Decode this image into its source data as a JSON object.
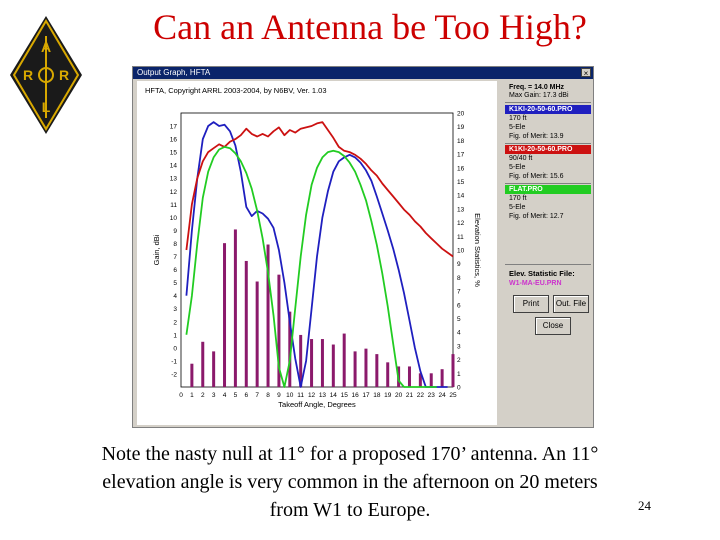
{
  "slide": {
    "title": "Can an Antenna be Too High?",
    "caption": "Note the nasty null at 11° for a proposed 170’ antenna. An 11° elevation angle is very common in the afternoon on 20 meters from W1 to Europe.",
    "page_number": "24",
    "logo_letters": [
      "A",
      "R",
      "R",
      "L"
    ]
  },
  "window": {
    "title": "Output Graph, HFTA",
    "close_glyph": "×"
  },
  "side_panel": {
    "freq": "Freq. = 14.0 MHz",
    "max_gain": "Max Gain: 17.3 dBi",
    "series": [
      {
        "file": "K1KI-20-50-60.PRO",
        "height": "170 ft",
        "elements": "5-Ele",
        "merit": "Fig. of Merit: 13.9",
        "color": "#1f1fbf"
      },
      {
        "file": "K1KI-20-50-60.PRO",
        "height": "90/40 ft",
        "elements": "5-Ele",
        "merit": "Fig. of Merit: 15.6",
        "color": "#cc1111"
      },
      {
        "file": "FLAT.PRO",
        "height": "170 ft",
        "elements": "5-Ele",
        "merit": "Fig. of Merit: 12.7",
        "color": "#22cc22"
      }
    ],
    "elev_label": "Elev. Statistic File:",
    "elev_file": "W1-MA-EU.PRN",
    "elev_file_color": "#cc33cc",
    "buttons": {
      "print": "Print",
      "out_file": "Out. File",
      "close": "Close"
    }
  },
  "chart_data": {
    "type": "line",
    "title": "HFTA, Copyright ARRL 2003-2004, by N6BV, Ver. 1.03",
    "xlabel": "Takeoff Angle, Degrees",
    "ylabel": "Gain, dBi",
    "y2label": "Elevation Statistics, %",
    "xlim": [
      0,
      25
    ],
    "ylim": [
      -3,
      18
    ],
    "y2lim": [
      0,
      20
    ],
    "x_ticks": [
      0,
      1,
      2,
      3,
      4,
      5,
      6,
      7,
      8,
      9,
      10,
      11,
      12,
      13,
      14,
      15,
      16,
      17,
      18,
      19,
      20,
      21,
      22,
      23,
      24,
      25
    ],
    "y_ticks": [
      -2,
      -1,
      0,
      1,
      2,
      3,
      4,
      5,
      6,
      7,
      8,
      9,
      10,
      11,
      12,
      13,
      14,
      15,
      16,
      17
    ],
    "y2_ticks": [
      0,
      1,
      2,
      3,
      4,
      5,
      6,
      7,
      8,
      9,
      10,
      11,
      12,
      13,
      14,
      15,
      16,
      17,
      18,
      19,
      20
    ],
    "series": [
      {
        "color": "#1f1fbf",
        "x": [
          0.5,
          1,
          1.5,
          2,
          2.5,
          3,
          3.5,
          4,
          4.5,
          5,
          5.5,
          6,
          6.5,
          7,
          7.5,
          8,
          8.5,
          9,
          9.5,
          10,
          10.5,
          11,
          11.5,
          12,
          12.5,
          13,
          13.5,
          14,
          14.5,
          15,
          15.5,
          16,
          16.5,
          17,
          17.5,
          18,
          18.5,
          19,
          19.5,
          20,
          20.5,
          21,
          21.5,
          22,
          22.5,
          23,
          23.5,
          24,
          24.5
        ],
        "y": [
          4,
          9,
          13,
          16,
          17,
          17.3,
          17,
          17.1,
          16.6,
          15.5,
          13.5,
          10.8,
          10.1,
          10.5,
          10.3,
          9.9,
          9.2,
          7.5,
          5,
          2,
          -0.8,
          -3,
          -1,
          3,
          7,
          10,
          12,
          13.5,
          14.3,
          14.6,
          14.8,
          14.6,
          14.2,
          13.6,
          12.8,
          11.6,
          10.3,
          9,
          7.6,
          6,
          4.2,
          2.1,
          0,
          -1.8,
          -3,
          -3,
          -3,
          -3,
          -3
        ]
      },
      {
        "color": "#cc1111",
        "x": [
          0.5,
          1,
          1.5,
          2,
          2.5,
          3,
          3.5,
          4,
          4.5,
          5,
          5.5,
          6,
          6.5,
          7,
          7.5,
          8,
          8.5,
          9,
          9.5,
          10,
          10.5,
          11,
          11.5,
          12,
          12.5,
          13,
          13.5,
          14,
          14.5,
          15,
          15.5,
          16,
          16.5,
          17,
          17.5,
          18,
          18.5,
          19,
          19.5,
          20,
          20.5,
          21,
          21.5,
          22,
          22.5,
          23,
          23.5,
          24,
          24.5,
          25
        ],
        "y": [
          7.5,
          11,
          13,
          14.3,
          15,
          15.3,
          15.6,
          15.4,
          15.8,
          16,
          16.3,
          16.8,
          16.4,
          16.2,
          16.4,
          16.2,
          16.6,
          16.9,
          16.3,
          16.7,
          16.5,
          16.8,
          16.9,
          17,
          17.2,
          17.3,
          16.7,
          16.1,
          15.4,
          15.1,
          15,
          14.8,
          14.5,
          14.1,
          13.6,
          13.2,
          12.6,
          12.1,
          11.6,
          11.1,
          10.6,
          10.2,
          9.7,
          9.3,
          8.8,
          8.4,
          8,
          7.6,
          7.3,
          7
        ]
      },
      {
        "color": "#22cc22",
        "x": [
          0.5,
          1,
          1.5,
          2,
          2.5,
          3,
          3.5,
          4,
          4.5,
          5,
          5.5,
          6,
          6.5,
          7,
          7.5,
          8,
          8.5,
          9,
          9.5,
          10,
          10.5,
          11,
          11.5,
          12,
          12.5,
          13,
          13.5,
          14,
          14.5,
          15,
          15.5,
          16,
          16.5,
          17,
          17.5,
          18,
          18.5,
          19,
          19.5,
          20,
          20.5,
          21,
          21.5,
          22,
          22.5,
          23,
          23.5
        ],
        "y": [
          1,
          4,
          8,
          11.5,
          13.5,
          14.6,
          15.2,
          15.4,
          15.3,
          14.9,
          14.3,
          13.4,
          12.2,
          10.5,
          8.4,
          5.8,
          2.5,
          -1.5,
          -3,
          -1,
          3,
          7,
          10.2,
          12.5,
          13.8,
          14.6,
          15,
          15.1,
          15,
          14.7,
          14.2,
          13.5,
          12.5,
          11.3,
          9.7,
          7.9,
          5.7,
          3.2,
          0.3,
          -2.5,
          -3,
          -3,
          -3,
          -3,
          -3,
          -3,
          -3
        ]
      }
    ],
    "bars": {
      "color": "#8b1a6b",
      "x": [
        1,
        2,
        3,
        4,
        5,
        6,
        7,
        8,
        9,
        10,
        11,
        12,
        13,
        14,
        15,
        16,
        17,
        18,
        19,
        20,
        21,
        22,
        23,
        24,
        25
      ],
      "y2": [
        1.7,
        3.3,
        2.6,
        10.5,
        11.5,
        9.2,
        7.7,
        10.4,
        8.2,
        5.5,
        3.8,
        3.5,
        3.5,
        3.1,
        3.9,
        2.6,
        2.8,
        2.4,
        1.8,
        1.5,
        1.5,
        1,
        1,
        1.3,
        2.4
      ]
    }
  }
}
